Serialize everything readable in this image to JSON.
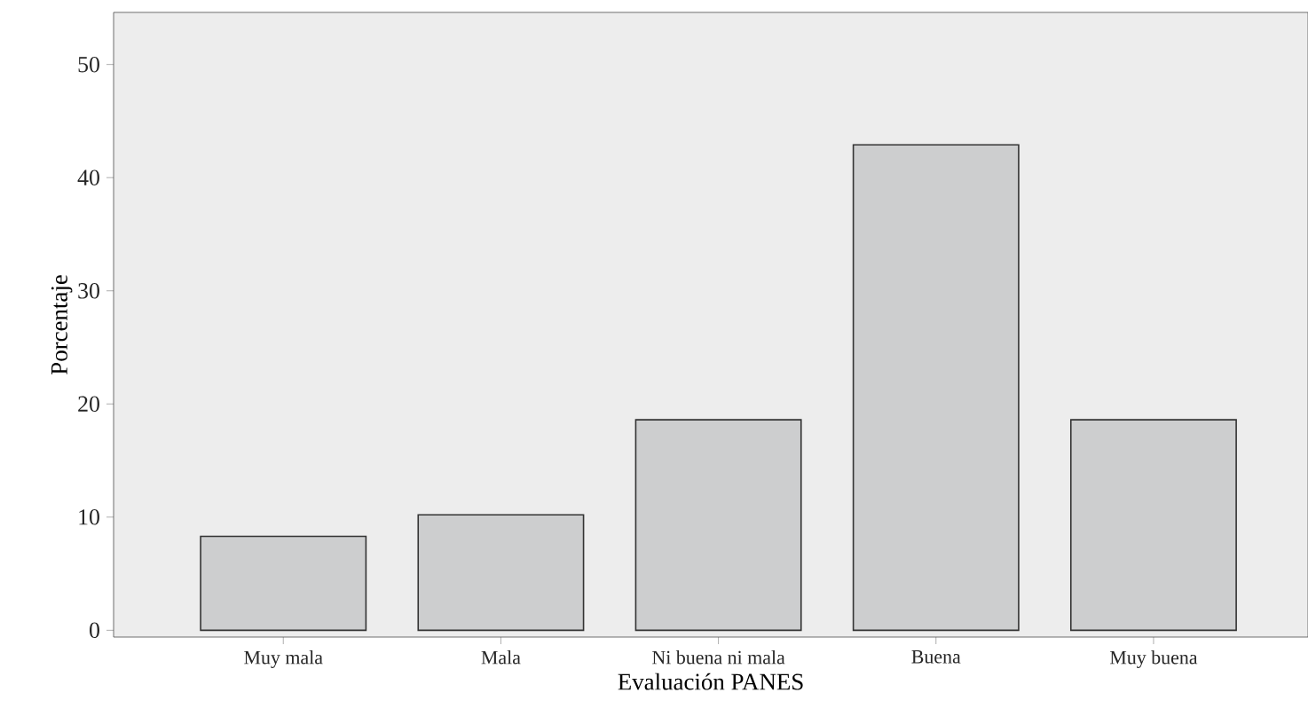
{
  "chart_data": {
    "type": "bar",
    "xlabel": "Evaluación PANES",
    "ylabel": "Porcentaje",
    "categories": [
      "Muy mala",
      "Mala",
      "Ni buena ni mala",
      "Buena",
      "Muy buena"
    ],
    "values": [
      8.3,
      10.2,
      18.6,
      42.9,
      18.6
    ],
    "color": "#cdcecf",
    "ylim": [
      -0.6,
      54.6
    ],
    "yticks": [
      0,
      10,
      20,
      30,
      40,
      50
    ]
  }
}
